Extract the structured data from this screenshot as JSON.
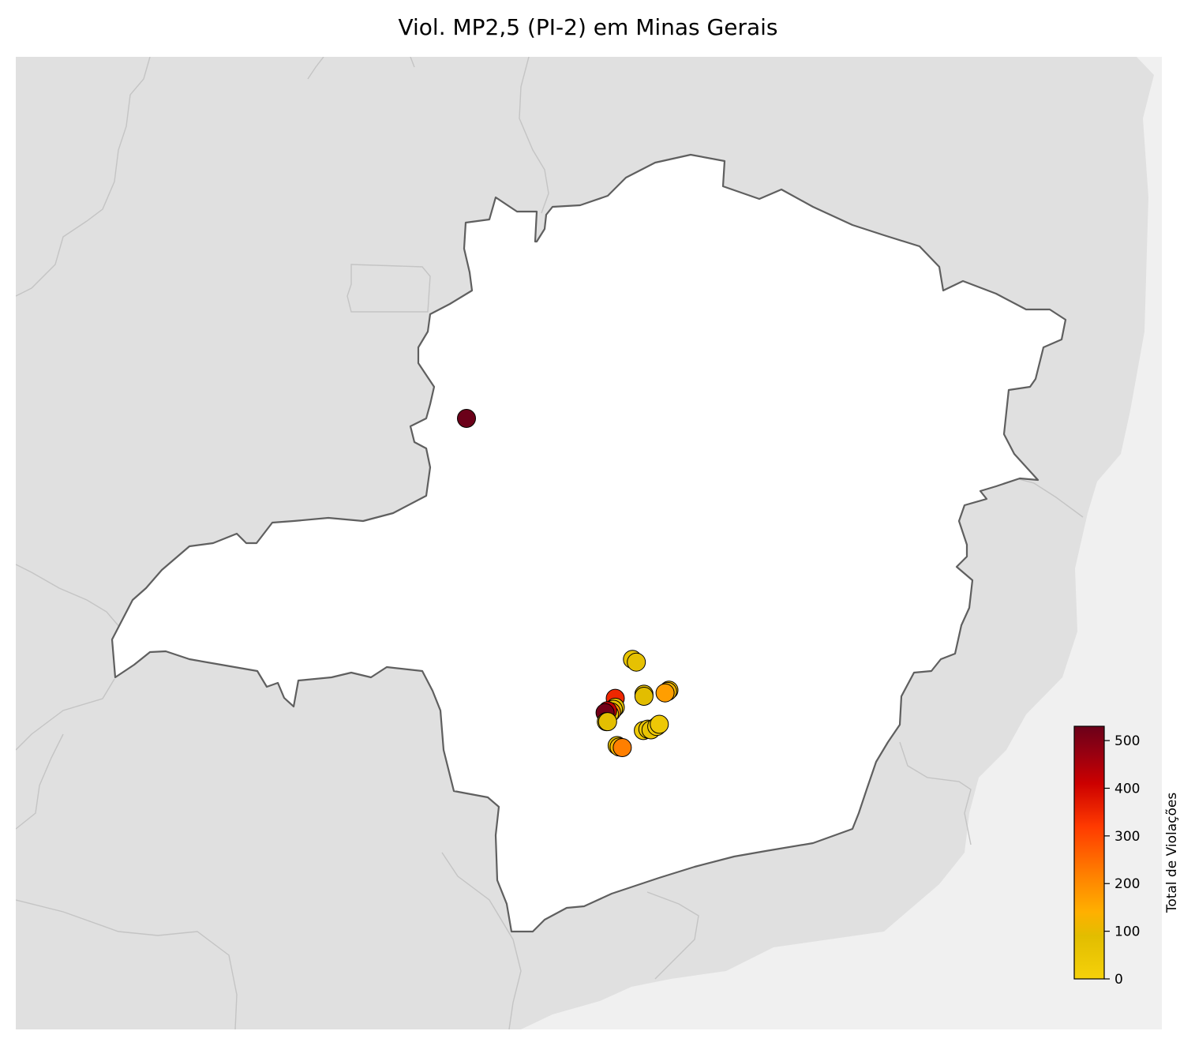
{
  "map": {
    "title": "Viol. MP2,5 (PI-2) em Minas Gerais",
    "colors": {
      "ocean": "#f0f0f0",
      "neighbors": "#e0e0e0",
      "state_fill": "#ffffff",
      "state_border": "#5f5f5f",
      "neighbor_border": "#c4c4c4",
      "marker_edge": "#000000"
    }
  },
  "colorbar": {
    "label": "Total de Violações",
    "range": [
      0,
      530
    ],
    "ticks": [
      0,
      100,
      200,
      300,
      400,
      500
    ],
    "tick_labels": [
      "0",
      "100",
      "200",
      "300",
      "400",
      "500"
    ],
    "stops": [
      {
        "v": 0,
        "c": "#f5d10a"
      },
      {
        "v": 90,
        "c": "#e2bd00"
      },
      {
        "v": 140,
        "c": "#ffb000"
      },
      {
        "v": 220,
        "c": "#ff7f00"
      },
      {
        "v": 320,
        "c": "#ff3a00"
      },
      {
        "v": 410,
        "c": "#cc0000"
      },
      {
        "v": 470,
        "c": "#9a0010"
      },
      {
        "v": 530,
        "c": "#6b0019"
      }
    ]
  },
  "chart_data": {
    "type": "scatter",
    "title": "Viol. MP2,5 (PI-2) em Minas Gerais",
    "colorbar_label": "Total de Violações",
    "color_range": [
      0,
      530
    ],
    "points": [
      {
        "lon": -46.55,
        "lat": -16.06,
        "value": 530
      },
      {
        "lon": -43.95,
        "lat": -19.58,
        "value": 60
      },
      {
        "lon": -43.89,
        "lat": -19.62,
        "value": 70
      },
      {
        "lon": -43.77,
        "lat": -20.09,
        "value": 95
      },
      {
        "lon": -43.77,
        "lat": -20.12,
        "value": 90
      },
      {
        "lon": -43.38,
        "lat": -20.03,
        "value": 110
      },
      {
        "lon": -43.4,
        "lat": -20.05,
        "value": 120
      },
      {
        "lon": -43.44,
        "lat": -20.07,
        "value": 170
      },
      {
        "lon": -44.22,
        "lat": -20.15,
        "value": 350
      },
      {
        "lon": -44.22,
        "lat": -20.28,
        "value": 80
      },
      {
        "lon": -44.25,
        "lat": -20.31,
        "value": 70
      },
      {
        "lon": -44.28,
        "lat": -20.35,
        "value": 200
      },
      {
        "lon": -44.31,
        "lat": -20.38,
        "value": 90
      },
      {
        "lon": -44.34,
        "lat": -20.33,
        "value": 420
      },
      {
        "lon": -44.38,
        "lat": -20.36,
        "value": 520
      },
      {
        "lon": -44.36,
        "lat": -20.49,
        "value": 70
      },
      {
        "lon": -44.34,
        "lat": -20.49,
        "value": 80
      },
      {
        "lon": -44.19,
        "lat": -20.84,
        "value": 70
      },
      {
        "lon": -44.16,
        "lat": -20.86,
        "value": 120
      },
      {
        "lon": -44.11,
        "lat": -20.87,
        "value": 220
      },
      {
        "lon": -43.78,
        "lat": -20.62,
        "value": 30
      },
      {
        "lon": -43.71,
        "lat": -20.6,
        "value": 40
      },
      {
        "lon": -43.66,
        "lat": -20.61,
        "value": 60
      },
      {
        "lon": -43.57,
        "lat": -20.56,
        "value": 30
      },
      {
        "lon": -43.53,
        "lat": -20.53,
        "value": 40
      }
    ]
  }
}
